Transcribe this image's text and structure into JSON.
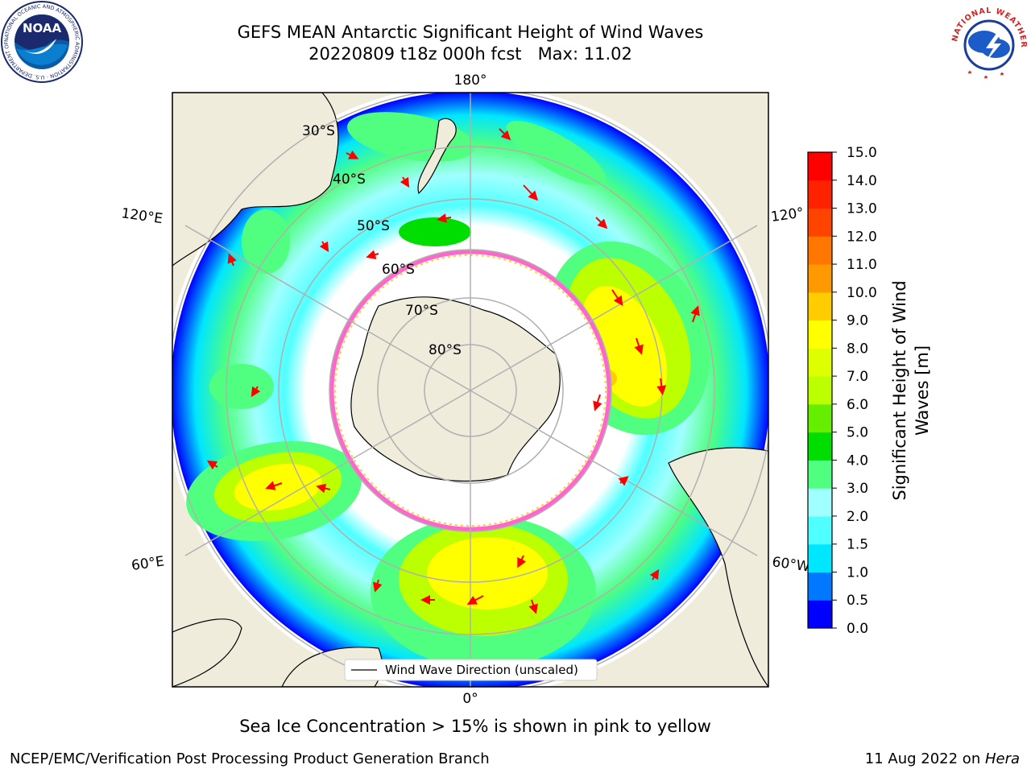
{
  "header": {
    "title_line1": "GEFS MEAN Antarctic Significant Height of Wind Waves",
    "title_line2": "20220809 t18z 000h fcst   Max: 11.02"
  },
  "logos": {
    "noaa": {
      "text": "NOAA",
      "ring_text": "NATIONAL OCEANIC AND ATMOSPHERIC ADMINISTRATION · U.S. DEPARTMENT OF COMMERCE"
    },
    "nws": {
      "ring_text": "NATIONAL WEATHER SERVICE"
    }
  },
  "map": {
    "projection": "south-polar-stereographic",
    "longitude_labels": {
      "top": "180°",
      "bottom": "0°",
      "upper_left": "120°E",
      "upper_right": "120°",
      "lower_left": "60°E",
      "lower_right": "60°W"
    },
    "latitude_labels": [
      "30°S",
      "40°S",
      "50°S",
      "60°S",
      "70°S",
      "80°S"
    ],
    "legend": {
      "label": "Wind Wave Direction (unscaled)"
    }
  },
  "colorbar": {
    "label_line1": "Significant Height of Wind",
    "label_line2": "Waves [m]",
    "ticks": [
      "0.0",
      "0.5",
      "1.0",
      "1.5",
      "2.0",
      "3.0",
      "4.0",
      "5.0",
      "6.0",
      "7.0",
      "8.0",
      "9.0",
      "10.0",
      "11.0",
      "12.0",
      "13.0",
      "14.0",
      "15.0"
    ],
    "colors": [
      "#0000ff",
      "#0078ff",
      "#00e6ff",
      "#50ffff",
      "#a0ffff",
      "#50ff80",
      "#00dd00",
      "#66ee00",
      "#bbff00",
      "#ddff00",
      "#ffff00",
      "#ffcc00",
      "#ff9900",
      "#ff7700",
      "#ff4400",
      "#ff2200",
      "#ff0000"
    ]
  },
  "note": "Sea Ice Concentration > 15% is shown in pink to yellow",
  "footer": {
    "left": "NCEP/EMC/Verification Post Processing Product Generation Branch",
    "right_prefix": "11 Aug 2022 on ",
    "right_system": "Hera"
  }
}
